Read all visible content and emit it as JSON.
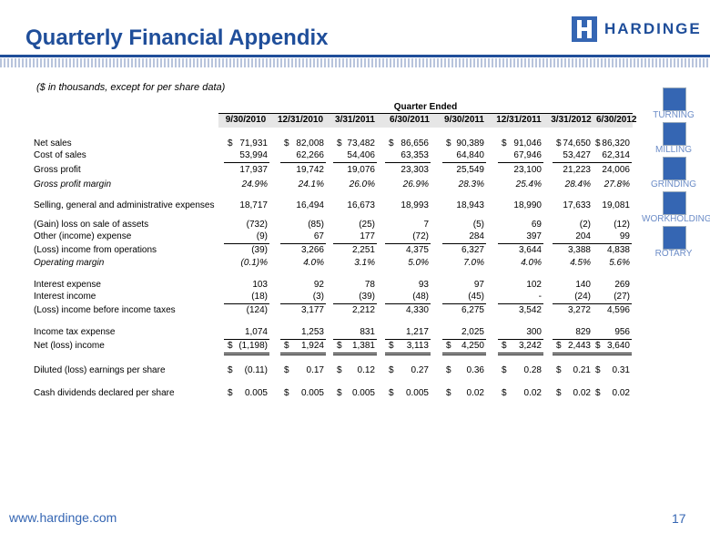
{
  "header": {
    "title": "Quarterly Financial Appendix",
    "logo": "HARDINGE"
  },
  "subtitle": "($ in thousands, except for per share data)",
  "table": {
    "group_header": "Quarter Ended",
    "columns": [
      "9/30/2010",
      "12/31/2010",
      "3/31/2011",
      "6/30/2011",
      "9/30/2011",
      "12/31/2011",
      "3/31/2012",
      "6/30/2012"
    ],
    "rows": [
      {
        "label": "Net sales",
        "prefix": "$",
        "values": [
          "71,931",
          "82,008",
          "73,482",
          "86,656",
          "90,389",
          "91,046",
          "74,650",
          "86,320"
        ]
      },
      {
        "label": "Cost of sales",
        "rule": "single",
        "values": [
          "53,994",
          "62,266",
          "54,406",
          "63,353",
          "64,840",
          "67,946",
          "53,427",
          "62,314"
        ]
      },
      {
        "label": "Gross profit",
        "values": [
          "17,937",
          "19,742",
          "19,076",
          "23,303",
          "25,549",
          "23,100",
          "21,223",
          "24,006"
        ]
      },
      {
        "label": "Gross profit margin",
        "style": "italic",
        "values": [
          "24.9%",
          "24.1%",
          "26.0%",
          "26.9%",
          "28.3%",
          "25.4%",
          "28.4%",
          "27.8%"
        ]
      },
      {
        "label": "Selling, general and administrative expenses",
        "values": [
          "18,717",
          "16,494",
          "16,673",
          "18,993",
          "18,943",
          "18,990",
          "17,633",
          "19,081"
        ]
      },
      {
        "label": "(Gain) loss on sale of assets",
        "values": [
          "(732)",
          "(85)",
          "(25)",
          "7",
          "(5)",
          "69",
          "(2)",
          "(12)"
        ]
      },
      {
        "label": "Other (income) expense",
        "rule": "single",
        "values": [
          "(9)",
          "67",
          "177",
          "(72)",
          "284",
          "397",
          "204",
          "99"
        ]
      },
      {
        "label": "(Loss) income from operations",
        "values": [
          "(39)",
          "3,266",
          "2,251",
          "4,375",
          "6,327",
          "3,644",
          "3,388",
          "4,838"
        ]
      },
      {
        "label": "Operating margin",
        "style": "italic",
        "values": [
          "(0.1)%",
          "4.0%",
          "3.1%",
          "5.0%",
          "7.0%",
          "4.0%",
          "4.5%",
          "5.6%"
        ]
      },
      {
        "label": "Interest expense",
        "values": [
          "103",
          "92",
          "78",
          "93",
          "97",
          "102",
          "140",
          "269"
        ]
      },
      {
        "label": "Interest income",
        "rule": "single",
        "values": [
          "(18)",
          "(3)",
          "(39)",
          "(48)",
          "(45)",
          "-",
          "(24)",
          "(27)"
        ]
      },
      {
        "label": "(Loss) income before income taxes",
        "values": [
          "(124)",
          "3,177",
          "2,212",
          "4,330",
          "6,275",
          "3,542",
          "3,272",
          "4,596"
        ]
      },
      {
        "label": "Income tax expense",
        "rule": "single",
        "values": [
          "1,074",
          "1,253",
          "831",
          "1,217",
          "2,025",
          "300",
          "829",
          "956"
        ]
      },
      {
        "label": "Net (loss) income",
        "prefix": "$",
        "rule": "double",
        "values": [
          "(1,198)",
          "1,924",
          "1,381",
          "3,113",
          "4,250",
          "3,242",
          "2,443",
          "3,640"
        ]
      },
      {
        "label": "Diluted (loss) earnings per share",
        "prefix": "$",
        "values": [
          "(0.11)",
          "0.17",
          "0.12",
          "0.27",
          "0.36",
          "0.28",
          "0.21",
          "0.31"
        ]
      },
      {
        "label": "Cash dividends declared per share",
        "prefix": "$",
        "values": [
          "0.005",
          "0.005",
          "0.005",
          "0.005",
          "0.02",
          "0.02",
          "0.02",
          "0.02"
        ]
      }
    ]
  },
  "sidebar": [
    "TURNING",
    "MILLING",
    "GRINDING",
    "WORKHOLDING",
    "ROTARY"
  ],
  "footer": {
    "url": "www.hardinge.com",
    "page": "17"
  }
}
